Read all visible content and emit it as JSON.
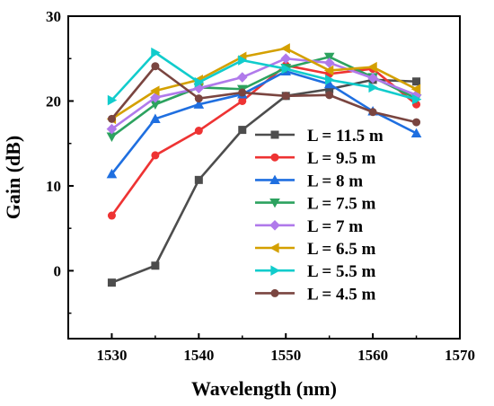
{
  "chart_data": {
    "type": "line",
    "xlabel": "Wavelength (nm)",
    "ylabel": "Gain (dB)",
    "xlim": [
      1525,
      1570
    ],
    "ylim": [
      -8,
      30
    ],
    "xticks": [
      1530,
      1540,
      1550,
      1560,
      1570
    ],
    "yticks": [
      0,
      10,
      20,
      30
    ],
    "legend_position": "right-center",
    "x": [
      1530,
      1535,
      1540,
      1545,
      1550,
      1555,
      1560,
      1565
    ],
    "series": [
      {
        "name": "L = 11.5 m",
        "color": "#4d4d4d",
        "marker": "square",
        "values": [
          -1.4,
          0.6,
          10.7,
          16.6,
          20.6,
          21.4,
          22.5,
          22.3
        ]
      },
      {
        "name": "L = 9.5 m",
        "color": "#ee3333",
        "marker": "circle",
        "values": [
          6.5,
          13.6,
          16.5,
          20.0,
          24.2,
          23.2,
          23.8,
          19.6
        ]
      },
      {
        "name": "L = 8 m",
        "color": "#1f6fe0",
        "marker": "triangle-up",
        "values": [
          11.4,
          17.9,
          19.6,
          20.8,
          23.5,
          22.0,
          18.8,
          16.2
        ]
      },
      {
        "name": "L = 7.5 m",
        "color": "#2ca25f",
        "marker": "triangle-down",
        "values": [
          15.8,
          19.6,
          21.6,
          21.4,
          23.9,
          25.2,
          22.8,
          20.3
        ]
      },
      {
        "name": "L = 7 m",
        "color": "#b07aeb",
        "marker": "diamond",
        "values": [
          16.7,
          20.4,
          21.5,
          22.8,
          25.0,
          24.5,
          22.7,
          20.7
        ]
      },
      {
        "name": "L = 6.5 m",
        "color": "#d4a000",
        "marker": "triangle-left",
        "values": [
          17.9,
          21.2,
          22.5,
          25.2,
          26.2,
          23.6,
          24.0,
          21.4
        ]
      },
      {
        "name": "L = 5.5 m",
        "color": "#11cccc",
        "marker": "triangle-right",
        "values": [
          20.1,
          25.7,
          22.2,
          24.8,
          23.8,
          22.5,
          21.6,
          20.2
        ]
      },
      {
        "name": "L = 4.5 m",
        "color": "#7a4540",
        "marker": "circle",
        "values": [
          17.9,
          24.1,
          20.3,
          21.0,
          20.6,
          20.7,
          18.7,
          17.5
        ]
      }
    ]
  }
}
